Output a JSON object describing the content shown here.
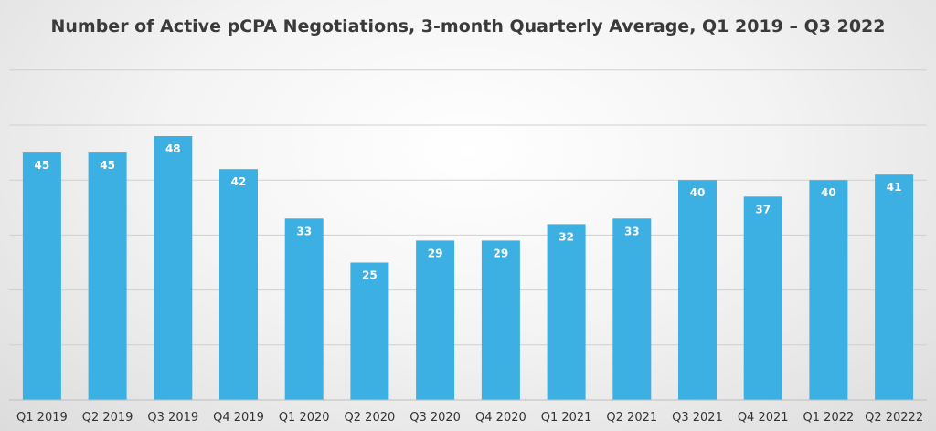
{
  "chart_data": {
    "type": "bar",
    "title": "Number of Active pCPA Negotiations, 3-month Quarterly Average, Q1 2019 – Q3 2022",
    "categories": [
      "Q1 2019",
      "Q2 2019",
      "Q3 2019",
      "Q4 2019",
      "Q1 2020",
      "Q2 2020",
      "Q3 2020",
      "Q4 2020",
      "Q1 2021",
      "Q2 2021",
      "Q3 2021",
      "Q4 2021",
      "Q1 2022",
      "Q2 20222"
    ],
    "values": [
      45,
      45,
      48,
      42,
      33,
      25,
      29,
      29,
      32,
      33,
      40,
      37,
      40,
      41
    ],
    "ylim": [
      0,
      60
    ],
    "grid": true,
    "legend": "none",
    "bar_color": "#3cb0e2"
  }
}
